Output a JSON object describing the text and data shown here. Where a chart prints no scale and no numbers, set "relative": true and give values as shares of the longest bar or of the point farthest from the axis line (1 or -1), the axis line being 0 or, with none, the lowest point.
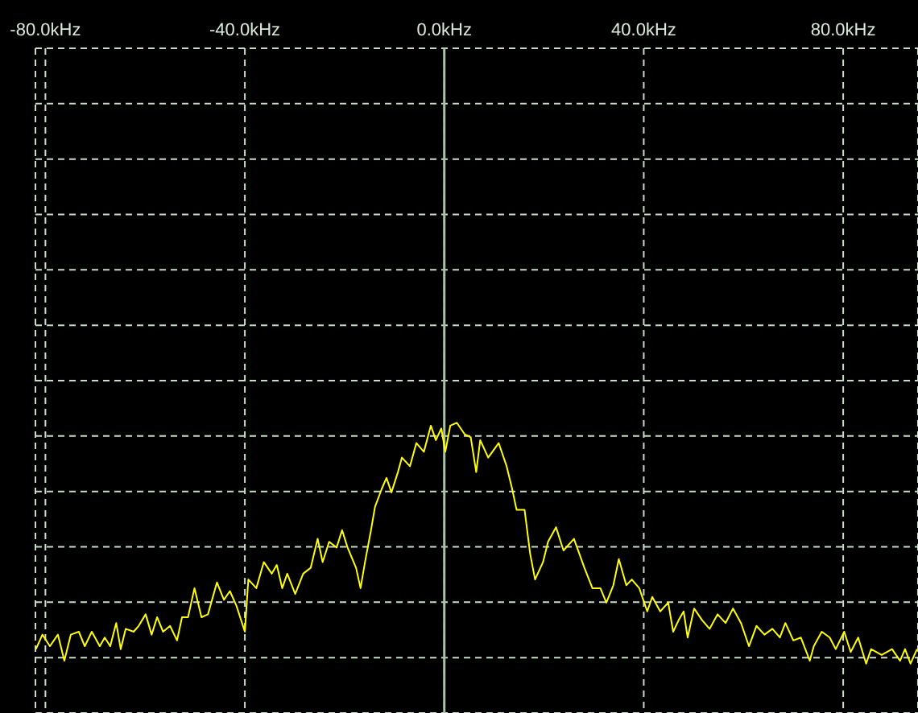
{
  "chart_data": {
    "type": "line",
    "relative": true,
    "xlim": [
      -82,
      95
    ],
    "xticks": [
      {
        "value": -80,
        "label": "-80.0kHz"
      },
      {
        "value": -40,
        "label": "-40.0kHz"
      },
      {
        "value": 0,
        "label": "0.0kHz"
      },
      {
        "value": 40,
        "label": "40.0kHz"
      },
      {
        "value": 80,
        "label": "80.0kHz"
      }
    ],
    "grid": true,
    "marker": "none",
    "line_style": "solid",
    "ref_lines": [
      {
        "axis": "x",
        "value": 0,
        "color": "#a8c0a8"
      }
    ],
    "x": [
      -81.9,
      -80.6,
      -79.1,
      -77.5,
      -76.2,
      -74.9,
      -73.3,
      -72.1,
      -70.7,
      -69.1,
      -68.1,
      -67.0,
      -65.8,
      -64.9,
      -63.9,
      -62.3,
      -61.3,
      -59.9,
      -58.7,
      -57.6,
      -56.4,
      -55.0,
      -53.6,
      -52.6,
      -51.4,
      -50.1,
      -48.7,
      -47.4,
      -45.6,
      -44.2,
      -43.0,
      -41.7,
      -40.0,
      -39.3,
      -37.7,
      -36.2,
      -34.6,
      -33.6,
      -32.5,
      -31.5,
      -29.9,
      -28.3,
      -26.8,
      -25.4,
      -24.4,
      -23.1,
      -21.6,
      -20.5,
      -19.4,
      -17.7,
      -16.8,
      -15.8,
      -14.7,
      -13.9,
      -12.6,
      -11.6,
      -10.6,
      -9.3,
      -8.5,
      -6.9,
      -5.6,
      -4.1,
      -2.7,
      -1.7,
      -0.6,
      0.2,
      1.2,
      2.5,
      4.1,
      5.3,
      6.4,
      7.2,
      8.8,
      10.9,
      12.5,
      13.5,
      14.5,
      16.1,
      17.2,
      18.2,
      19.8,
      20.8,
      22.4,
      23.9,
      26.0,
      28.1,
      29.7,
      31.3,
      32.5,
      33.9,
      35.0,
      36.5,
      37.6,
      39.1,
      40.7,
      41.7,
      43.3,
      44.9,
      45.9,
      47.0,
      48.0,
      48.8,
      50.1,
      51.7,
      53.2,
      54.8,
      56.4,
      57.9,
      59.5,
      61.1,
      62.6,
      64.2,
      65.8,
      67.3,
      68.4,
      70.0,
      71.5,
      73.3,
      74.1,
      75.7,
      77.3,
      78.5,
      80.2,
      81.5,
      83.0,
      84.6,
      85.6,
      87.7,
      89.8,
      91.4,
      92.4,
      93.5,
      94.8
    ],
    "series": [
      {
        "color": "#ffff00",
        "values": [
          0.22,
          0.27,
          0.23,
          0.27,
          0.18,
          0.27,
          0.28,
          0.23,
          0.28,
          0.23,
          0.26,
          0.23,
          0.31,
          0.22,
          0.29,
          0.28,
          0.3,
          0.34,
          0.27,
          0.33,
          0.28,
          0.3,
          0.25,
          0.33,
          0.33,
          0.43,
          0.33,
          0.34,
          0.45,
          0.39,
          0.42,
          0.37,
          0.28,
          0.46,
          0.43,
          0.52,
          0.48,
          0.51,
          0.43,
          0.48,
          0.41,
          0.48,
          0.5,
          0.6,
          0.52,
          0.59,
          0.57,
          0.63,
          0.57,
          0.5,
          0.43,
          0.53,
          0.63,
          0.71,
          0.77,
          0.81,
          0.76,
          0.83,
          0.88,
          0.85,
          0.93,
          0.9,
          0.99,
          0.94,
          0.98,
          0.9,
          0.99,
          1,
          0.96,
          0.95,
          0.83,
          0.94,
          0.88,
          0.93,
          0.85,
          0.78,
          0.7,
          0.7,
          0.55,
          0.46,
          0.52,
          0.59,
          0.64,
          0.56,
          0.6,
          0.5,
          0.43,
          0.43,
          0.38,
          0.44,
          0.53,
          0.44,
          0.46,
          0.43,
          0.35,
          0.4,
          0.35,
          0.38,
          0.28,
          0.32,
          0.35,
          0.26,
          0.36,
          0.32,
          0.29,
          0.34,
          0.31,
          0.36,
          0.31,
          0.23,
          0.3,
          0.27,
          0.29,
          0.26,
          0.31,
          0.25,
          0.26,
          0.18,
          0.23,
          0.28,
          0.26,
          0.22,
          0.28,
          0.21,
          0.26,
          0.17,
          0.22,
          0.2,
          0.22,
          0.18,
          0.22,
          0.17,
          0.22
        ]
      }
    ]
  }
}
